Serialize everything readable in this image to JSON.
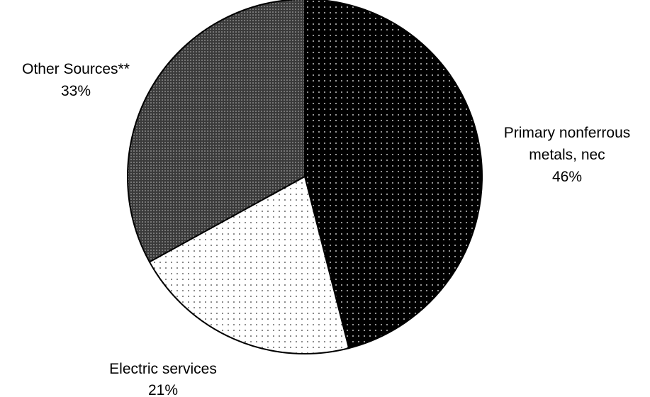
{
  "chart_data": {
    "type": "pie",
    "slices": [
      {
        "label_lines": [
          "Primary nonferrous",
          "metals, nec"
        ],
        "pct_label": "46%",
        "value": 46,
        "fill": "#000000",
        "dot": "#ffffff",
        "pattern": "sparse-dots-on-black"
      },
      {
        "label_lines": [
          "Electric services"
        ],
        "pct_label": "21%",
        "value": 21,
        "fill": "#ffffff",
        "dot": "#000000",
        "pattern": "sparse-dots-on-white"
      },
      {
        "label_lines": [
          "Other Sources**"
        ],
        "pct_label": "33%",
        "value": 33,
        "fill": "#3a3a3a",
        "dot": "#bdbdbd",
        "pattern": "dense-dots-on-dark"
      }
    ],
    "start_angle": "12 o'clock",
    "direction": "clockwise",
    "title": "",
    "legend": "none"
  }
}
